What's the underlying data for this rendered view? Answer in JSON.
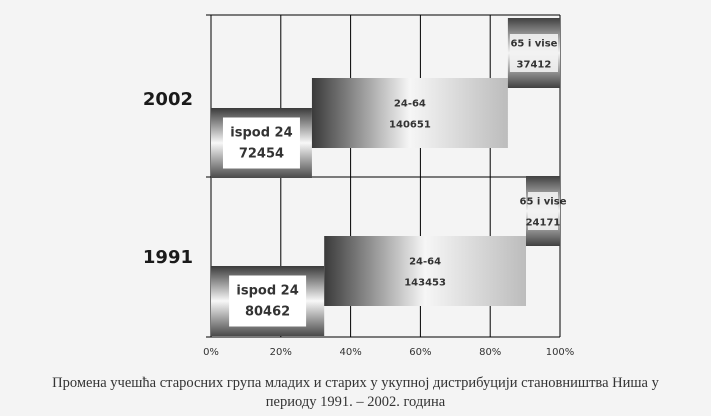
{
  "chart_data": {
    "type": "bar",
    "orientation": "horizontal",
    "stacked": "percent",
    "categories": [
      "2002",
      "1991"
    ],
    "series": [
      {
        "name": "ispod 24",
        "label_lines": [
          "ispod 24"
        ],
        "values": [
          72454,
          80462
        ]
      },
      {
        "name": "24-64",
        "label_lines": [
          "24-64"
        ],
        "values": [
          140651,
          143453
        ]
      },
      {
        "name": "65 i vise",
        "label_lines": [
          "65 i vise"
        ],
        "values": [
          37412,
          24171
        ]
      }
    ],
    "x_ticks": [
      "0%",
      "20%",
      "40%",
      "60%",
      "80%",
      "100%"
    ],
    "xlim": [
      0,
      100
    ],
    "grid": true,
    "legend": "none",
    "colors": {
      "dark": "#3a3a3a",
      "light": "#ffffff",
      "mid": "#b8b8b8",
      "grid": "#000000",
      "axis_text": "#333333",
      "category_text": "#1a1a1a"
    }
  },
  "caption": {
    "line1": "Промена учешћа старосних група младих и старих у укупној дистрибуцији становништва Ниша у",
    "line2": "периоду 1991. – 2002. година"
  }
}
